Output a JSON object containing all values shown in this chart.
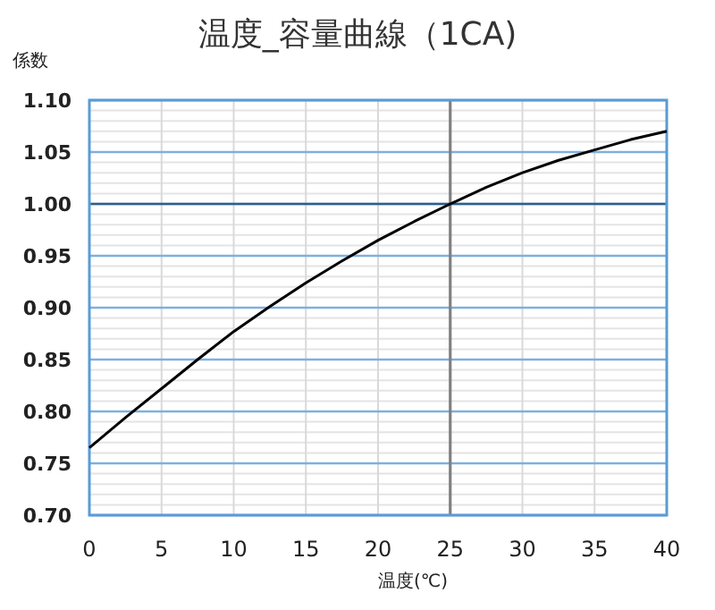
{
  "chart_data": {
    "type": "line",
    "title": "温度_容量曲線（1CA)",
    "xlabel": "温度(℃)",
    "ylabel": "係数",
    "x": [
      0,
      2.5,
      5,
      7.5,
      10,
      12.5,
      15,
      17.5,
      20,
      22.5,
      25,
      27.5,
      30,
      32.5,
      35,
      37.5,
      40
    ],
    "series": [
      {
        "color": "#000000",
        "values": [
          0.765,
          0.794,
          0.822,
          0.85,
          0.877,
          0.901,
          0.924,
          0.945,
          0.965,
          0.983,
          1.0,
          1.016,
          1.03,
          1.042,
          1.052,
          1.062,
          1.07
        ]
      }
    ],
    "xlim": [
      0,
      40
    ],
    "xticks": [
      0,
      5,
      10,
      15,
      20,
      25,
      30,
      35,
      40
    ],
    "ylim": [
      0.7,
      1.1
    ],
    "yticks": [
      {
        "value": 0.7,
        "label": "0.70"
      },
      {
        "value": 0.75,
        "label": "0.75"
      },
      {
        "value": 0.8,
        "label": "0.80"
      },
      {
        "value": 0.85,
        "label": "0.85"
      },
      {
        "value": 0.9,
        "label": "0.90"
      },
      {
        "value": 0.95,
        "label": "0.95"
      },
      {
        "value": 1.0,
        "label": "1.00"
      },
      {
        "value": 1.05,
        "label": "1.05"
      },
      {
        "value": 1.1,
        "label": "1.10"
      }
    ],
    "grid": true,
    "marker": "none",
    "line_style": "solid",
    "ref_lines": [
      {
        "axis": "x",
        "value": 25,
        "color": "#808080"
      },
      {
        "axis": "y",
        "value": 1.0,
        "color": "#2f5f8a"
      }
    ]
  }
}
